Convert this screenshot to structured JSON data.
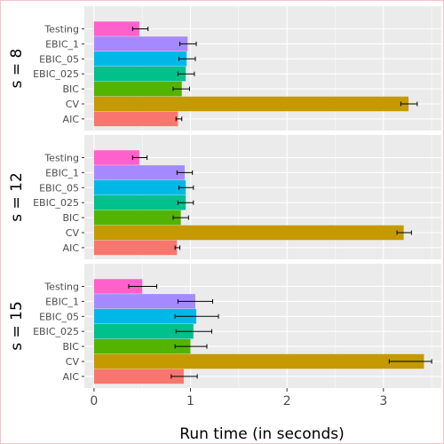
{
  "chart_data": {
    "type": "bar",
    "orientation": "horizontal",
    "xlabel": "Run time (in seconds)",
    "xlim": [
      -0.1,
      3.6
    ],
    "x_ticks": [
      0,
      1,
      2,
      3
    ],
    "x_tick_labels": [
      "0",
      "1",
      "2",
      "3"
    ],
    "grid": true,
    "categories": [
      "Testing",
      "EBIC_1",
      "EBIC_05",
      "EBIC_025",
      "BIC",
      "CV",
      "AIC"
    ],
    "colors": {
      "Testing": "#ff61cc",
      "EBIC_1": "#a58aff",
      "EBIC_05": "#00b8e7",
      "EBIC_025": "#00c08b",
      "BIC": "#53b400",
      "CV": "#c49a00",
      "AIC": "#f8766d"
    },
    "facets": [
      {
        "label": "s = 8",
        "values": [
          0.47,
          0.97,
          0.96,
          0.95,
          0.91,
          3.26,
          0.87
        ],
        "errors": [
          [
            0.4,
            0.56
          ],
          [
            0.89,
            1.06
          ],
          [
            0.88,
            1.05
          ],
          [
            0.87,
            1.04
          ],
          [
            0.82,
            0.99
          ],
          [
            3.18,
            3.35
          ],
          [
            0.85,
            0.91
          ]
        ]
      },
      {
        "label": "s = 12",
        "values": [
          0.47,
          0.94,
          0.95,
          0.95,
          0.9,
          3.21,
          0.86
        ],
        "errors": [
          [
            0.4,
            0.55
          ],
          [
            0.86,
            1.02
          ],
          [
            0.88,
            1.03
          ],
          [
            0.87,
            1.03
          ],
          [
            0.82,
            0.98
          ],
          [
            3.14,
            3.29
          ],
          [
            0.84,
            0.89
          ]
        ]
      },
      {
        "label": "s = 15",
        "values": [
          0.5,
          1.05,
          1.06,
          1.03,
          1.0,
          3.42,
          0.93
        ],
        "errors": [
          [
            0.36,
            0.65
          ],
          [
            0.87,
            1.23
          ],
          [
            0.84,
            1.29
          ],
          [
            0.85,
            1.22
          ],
          [
            0.84,
            1.17
          ],
          [
            3.06,
            3.5
          ],
          [
            0.8,
            1.07
          ]
        ]
      }
    ]
  }
}
